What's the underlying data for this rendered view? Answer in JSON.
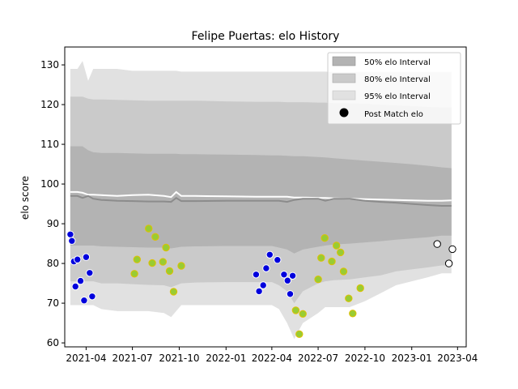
{
  "chart_data": {
    "type": "line",
    "title": "Felipe Puertas: elo History",
    "xlabel": "",
    "ylabel": "elo score",
    "x_tick_labels": [
      "2021-04",
      "2021-07",
      "2021-10",
      "2022-01",
      "2022-04",
      "2022-07",
      "2022-10",
      "2023-01",
      "2023-04"
    ],
    "y_ticks": [
      60,
      70,
      80,
      90,
      100,
      110,
      120,
      130
    ],
    "xlim": [
      "2021-02-18",
      "2023-04-18"
    ],
    "ylim": [
      59,
      134.5
    ],
    "legend": {
      "placement": "top-right",
      "entries": [
        "50% elo Interval",
        "80% elo Interval",
        "95% elo Interval",
        "Post Match elo"
      ]
    },
    "colors": {
      "band_50": "#b3b3b3",
      "band_80": "#cacaca",
      "band_95": "#e1e1e1",
      "mean_line": "#8c8c8c",
      "upper_line": "#ffffff",
      "win_point": "#0000dd",
      "loss_point": "#99cc33",
      "point_edge_win": "#ffffff",
      "point_edge_loss": "#e0c000",
      "future_point": "#ffffff"
    },
    "bands": {
      "x": [
        "2021-03-01",
        "2021-03-15",
        "2021-03-25",
        "2021-04-05",
        "2021-04-15",
        "2021-05-01",
        "2021-06-01",
        "2021-07-01",
        "2021-08-01",
        "2021-09-01",
        "2021-09-15",
        "2021-09-25",
        "2021-10-05",
        "2021-11-01",
        "2022-01-01",
        "2022-03-01",
        "2022-04-01",
        "2022-04-15",
        "2022-05-01",
        "2022-05-15",
        "2022-06-01",
        "2022-07-01",
        "2022-07-15",
        "2022-08-01",
        "2022-09-01",
        "2022-10-01",
        "2022-11-01",
        "2022-12-01",
        "2023-01-01",
        "2023-02-01",
        "2023-03-01",
        "2023-03-20"
      ],
      "band_95": {
        "upper": [
          129,
          129,
          131,
          126,
          129,
          129,
          129,
          128.5,
          128.5,
          128.5,
          128.5,
          128.5,
          128.3,
          128.3,
          128.3,
          128.3,
          128.3,
          128.3,
          128.3,
          128.3,
          128.3,
          128.3,
          128.3,
          128.2,
          128.2,
          128.2,
          128.2,
          128.2,
          128.2,
          128.2,
          128.2,
          128.2
        ],
        "lower": [
          69.5,
          69.5,
          69.5,
          69.5,
          69.5,
          68.5,
          68,
          68,
          68,
          67.5,
          66.5,
          68,
          69.5,
          69.5,
          69.5,
          69.5,
          69.5,
          68.5,
          65,
          61,
          65,
          67.5,
          69,
          69,
          69,
          70.5,
          72.5,
          74.5,
          75.5,
          76.5,
          77.5,
          77.5
        ]
      },
      "band_80": {
        "upper": [
          122,
          122,
          122,
          121.5,
          121.3,
          121.3,
          121.2,
          121.1,
          121,
          121,
          121,
          121,
          121,
          121,
          120.8,
          120.7,
          120.7,
          120.7,
          120.6,
          120.6,
          120.6,
          120.5,
          120.5,
          120.4,
          120.3,
          120.2,
          120,
          119.8,
          119.6,
          119.4,
          119.3,
          119.3
        ],
        "lower": [
          75.5,
          75.5,
          75.5,
          75.5,
          75.5,
          75,
          75,
          74.8,
          74.6,
          74.5,
          74,
          74.5,
          75,
          75.2,
          75.3,
          75.3,
          75.3,
          74.5,
          73,
          70,
          73,
          75,
          75.5,
          75.8,
          76,
          76.5,
          77,
          78,
          78.5,
          79,
          79.5,
          79.5
        ]
      },
      "band_50": {
        "upper": [
          109.5,
          109.5,
          109.5,
          108.5,
          108,
          107.8,
          107.8,
          107.7,
          107.6,
          107.6,
          107.6,
          107.6,
          107.5,
          107.5,
          107.4,
          107.3,
          107.2,
          107.2,
          107.1,
          107,
          107,
          106.8,
          106.7,
          106.5,
          106.2,
          105.9,
          105.6,
          105.3,
          105,
          104.6,
          104.2,
          104
        ],
        "lower": [
          84.5,
          84.5,
          84.5,
          84.5,
          84.5,
          84.3,
          84.2,
          84.1,
          84,
          84,
          83.8,
          84,
          84.2,
          84.3,
          84.4,
          84.4,
          84.4,
          84,
          83.5,
          82.5,
          83.5,
          84.2,
          84.5,
          84.8,
          85,
          85.3,
          85.6,
          86,
          86.3,
          86.6,
          87,
          87
        ]
      },
      "mean": [
        97,
        97,
        96.5,
        97,
        96.3,
        96,
        95.8,
        95.7,
        95.6,
        95.6,
        95.5,
        96.5,
        95.7,
        95.7,
        95.8,
        95.8,
        95.8,
        95.8,
        95.5,
        96,
        96.3,
        96.3,
        95.8,
        96.3,
        96.3,
        95.8,
        95.5,
        95.3,
        95,
        94.7,
        94.5,
        94.5
      ],
      "upper_line": [
        98,
        98,
        97.8,
        97.3,
        97.3,
        97.2,
        97,
        97.2,
        97.3,
        97,
        96.7,
        98,
        97,
        97,
        96.9,
        96.8,
        96.8,
        96.8,
        96.8,
        96.6,
        96.6,
        96.5,
        96.5,
        96.4,
        96.3,
        96.2,
        96.1,
        96,
        95.9,
        95.8,
        95.8,
        95.9
      ]
    },
    "series": [
      {
        "name": "Post Match elo",
        "points": [
          {
            "x": "2021-03-01",
            "y": 87.3,
            "result": "win"
          },
          {
            "x": "2021-03-04",
            "y": 85.7,
            "result": "win"
          },
          {
            "x": "2021-03-08",
            "y": 80.5,
            "result": "win"
          },
          {
            "x": "2021-03-11",
            "y": 74.2,
            "result": "win"
          },
          {
            "x": "2021-03-15",
            "y": 81,
            "result": "win"
          },
          {
            "x": "2021-03-21",
            "y": 75.6,
            "result": "win"
          },
          {
            "x": "2021-03-28",
            "y": 70.7,
            "result": "win"
          },
          {
            "x": "2021-04-01",
            "y": 81.6,
            "result": "win"
          },
          {
            "x": "2021-04-08",
            "y": 77.6,
            "result": "win"
          },
          {
            "x": "2021-04-13",
            "y": 71.7,
            "result": "win"
          },
          {
            "x": "2021-07-05",
            "y": 77.4,
            "result": "loss"
          },
          {
            "x": "2021-07-10",
            "y": 81,
            "result": "loss"
          },
          {
            "x": "2021-08-02",
            "y": 88.8,
            "result": "loss"
          },
          {
            "x": "2021-08-09",
            "y": 80.1,
            "result": "loss"
          },
          {
            "x": "2021-08-15",
            "y": 86.7,
            "result": "loss"
          },
          {
            "x": "2021-08-30",
            "y": 80.4,
            "result": "loss"
          },
          {
            "x": "2021-09-05",
            "y": 84,
            "result": "loss"
          },
          {
            "x": "2021-09-12",
            "y": 78.1,
            "result": "loss"
          },
          {
            "x": "2021-09-20",
            "y": 72.9,
            "result": "loss"
          },
          {
            "x": "2021-10-05",
            "y": 79.4,
            "result": "loss"
          },
          {
            "x": "2022-03-01",
            "y": 77.2,
            "result": "win"
          },
          {
            "x": "2022-03-07",
            "y": 73,
            "result": "win"
          },
          {
            "x": "2022-03-15",
            "y": 74.5,
            "result": "win"
          },
          {
            "x": "2022-03-21",
            "y": 78.8,
            "result": "win"
          },
          {
            "x": "2022-03-28",
            "y": 82.2,
            "result": "win"
          },
          {
            "x": "2022-04-12",
            "y": 80.9,
            "result": "win"
          },
          {
            "x": "2022-04-25",
            "y": 77.2,
            "result": "win"
          },
          {
            "x": "2022-05-02",
            "y": 75.7,
            "result": "win"
          },
          {
            "x": "2022-05-07",
            "y": 72.3,
            "result": "win"
          },
          {
            "x": "2022-05-12",
            "y": 76.9,
            "result": "win"
          },
          {
            "x": "2022-05-18",
            "y": 68.2,
            "result": "loss"
          },
          {
            "x": "2022-05-25",
            "y": 62.2,
            "result": "loss"
          },
          {
            "x": "2022-06-01",
            "y": 67.3,
            "result": "loss"
          },
          {
            "x": "2022-07-01",
            "y": 76,
            "result": "loss"
          },
          {
            "x": "2022-07-07",
            "y": 81.4,
            "result": "loss"
          },
          {
            "x": "2022-07-14",
            "y": 86.4,
            "result": "loss"
          },
          {
            "x": "2022-07-28",
            "y": 80.5,
            "result": "loss"
          },
          {
            "x": "2022-08-06",
            "y": 84.5,
            "result": "loss"
          },
          {
            "x": "2022-08-14",
            "y": 82.8,
            "result": "loss"
          },
          {
            "x": "2022-08-20",
            "y": 78,
            "result": "loss"
          },
          {
            "x": "2022-08-30",
            "y": 71.2,
            "result": "loss"
          },
          {
            "x": "2022-09-07",
            "y": 67.4,
            "result": "loss"
          },
          {
            "x": "2022-09-22",
            "y": 73.8,
            "result": "loss"
          },
          {
            "x": "2023-02-20",
            "y": 84.9,
            "result": "future"
          },
          {
            "x": "2023-03-15",
            "y": 80,
            "result": "future"
          },
          {
            "x": "2023-03-22",
            "y": 83.6,
            "result": "future"
          }
        ]
      }
    ]
  }
}
